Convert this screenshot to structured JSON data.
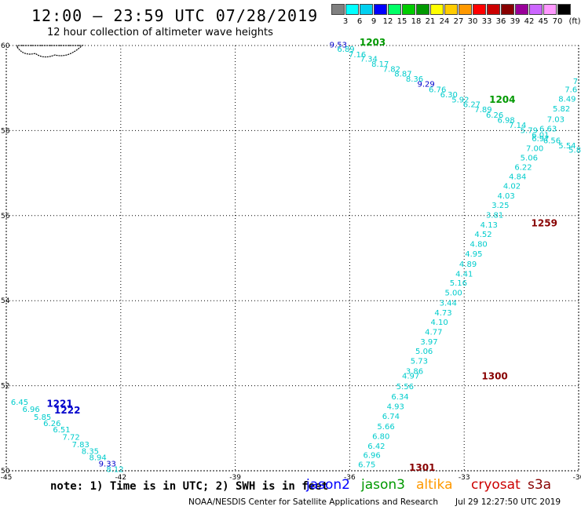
{
  "header": {
    "title": "12:00 – 23:59 UTC 07/28/2019",
    "subtitle": "12 hour collection of altimeter wave heights"
  },
  "colorbar": {
    "unit": "(ft)",
    "labels": [
      "3",
      "6",
      "9",
      "12",
      "15",
      "18",
      "21",
      "24",
      "27",
      "30",
      "33",
      "36",
      "39",
      "42",
      "45",
      "70"
    ],
    "colors": [
      "#808080",
      "#00ffff",
      "#00d0f0",
      "#0000ff",
      "#00ff66",
      "#00cc00",
      "#009900",
      "#ffff00",
      "#ffcc00",
      "#ff9900",
      "#ff0000",
      "#cc0000",
      "#880000",
      "#990099",
      "#cc66ff",
      "#ff99ff",
      "#000000"
    ]
  },
  "note": "note:  1) Time is in UTC;  2) SWH is in feet",
  "legend": [
    {
      "name": "jason2",
      "color": "#0000ff"
    },
    {
      "name": "jason3",
      "color": "#009900"
    },
    {
      "name": "altika",
      "color": "#ff9900"
    },
    {
      "name": "cryosat",
      "color": "#cc0000"
    },
    {
      "name": "s3a",
      "color": "#880000"
    }
  ],
  "footer": "NOAA/NESDIS Center for Satellite Applications and Research",
  "footer_date": "Jul 29 12:27:50 UTC 2019",
  "map": {
    "lon_range": [
      -45,
      -30
    ],
    "lat_range": [
      50,
      60
    ],
    "x_ticks": [
      "-45",
      "-42",
      "-39",
      "-36",
      "-33",
      "-30"
    ],
    "y_ticks": [
      "60",
      "58",
      "56",
      "54",
      "52",
      "50"
    ],
    "grid": true
  },
  "tracks": [
    {
      "time": "1203",
      "color": "#009900",
      "points": [
        {
          "lon": -36.3,
          "lat": 59.95,
          "swh": "9.53",
          "color": "#0000cc"
        },
        {
          "lon": -36.1,
          "lat": 59.85,
          "swh": "6.89"
        },
        {
          "lon": -35.8,
          "lat": 59.72,
          "swh": "7.16"
        },
        {
          "lon": -35.5,
          "lat": 59.62,
          "swh": "7.34"
        },
        {
          "lon": -35.2,
          "lat": 59.5,
          "swh": "8.17"
        },
        {
          "lon": -34.9,
          "lat": 59.38,
          "swh": "7.82"
        },
        {
          "lon": -34.6,
          "lat": 59.27,
          "swh": "8.87"
        },
        {
          "lon": -34.3,
          "lat": 59.15,
          "swh": "8.36"
        },
        {
          "lon": -34.0,
          "lat": 59.03,
          "swh": "9.29",
          "color": "#0000cc"
        },
        {
          "lon": -33.7,
          "lat": 58.9,
          "swh": "6.76"
        },
        {
          "lon": -33.4,
          "lat": 58.78,
          "swh": "6.30"
        },
        {
          "lon": -33.1,
          "lat": 58.66,
          "swh": "5.92"
        },
        {
          "lon": -32.8,
          "lat": 58.55,
          "swh": "6.27"
        },
        {
          "lon": -32.5,
          "lat": 58.43,
          "swh": "7.89"
        },
        {
          "lon": -32.2,
          "lat": 58.3,
          "swh": "6.26"
        },
        {
          "lon": -31.9,
          "lat": 58.18,
          "swh": "6.98"
        },
        {
          "lon": -31.6,
          "lat": 58.06,
          "swh": "7.14"
        },
        {
          "lon": -31.3,
          "lat": 57.94,
          "swh": "5.79"
        },
        {
          "lon": -31.0,
          "lat": 57.83,
          "swh": "6.01"
        },
        {
          "lon": -30.7,
          "lat": 57.7,
          "swh": "6.56"
        },
        {
          "lon": -30.3,
          "lat": 57.58,
          "swh": "5.54"
        },
        {
          "lon": -30.1,
          "lat": 57.48,
          "swh": "5.8"
        }
      ]
    },
    {
      "time": "1204",
      "color": "#009900",
      "points": [
        {
          "lon": -30.05,
          "lat": 59.1,
          "swh": "7."
        },
        {
          "lon": -30.2,
          "lat": 58.9,
          "swh": "7.6"
        },
        {
          "lon": -30.3,
          "lat": 58.68,
          "swh": "8.49"
        },
        {
          "lon": -30.45,
          "lat": 58.45,
          "swh": "5.82"
        },
        {
          "lon": -30.6,
          "lat": 58.2,
          "swh": "7.03"
        },
        {
          "lon": -30.8,
          "lat": 57.98,
          "swh": "6.63"
        },
        {
          "lon": -31.0,
          "lat": 57.75,
          "swh": "6.97"
        },
        {
          "lon": -31.15,
          "lat": 57.52,
          "swh": "7.00"
        },
        {
          "lon": -31.3,
          "lat": 57.3,
          "swh": "5.06"
        },
        {
          "lon": -31.45,
          "lat": 57.08,
          "swh": "6.22"
        },
        {
          "lon": -31.6,
          "lat": 56.85,
          "swh": "4.84"
        },
        {
          "lon": -31.75,
          "lat": 56.63,
          "swh": "4.02"
        },
        {
          "lon": -31.9,
          "lat": 56.4,
          "swh": "4.03"
        },
        {
          "lon": -32.05,
          "lat": 56.18,
          "swh": "3.25"
        },
        {
          "lon": -32.2,
          "lat": 55.95,
          "swh": "3.81"
        },
        {
          "lon": -32.35,
          "lat": 55.72,
          "swh": "4.13"
        },
        {
          "lon": -32.5,
          "lat": 55.5,
          "swh": "4.52"
        },
        {
          "lon": -32.62,
          "lat": 55.27,
          "swh": "4.80"
        },
        {
          "lon": -32.75,
          "lat": 55.04,
          "swh": "4.95"
        },
        {
          "lon": -32.9,
          "lat": 54.8,
          "swh": "4.89"
        },
        {
          "lon": -33.0,
          "lat": 54.57,
          "swh": "4.41"
        },
        {
          "lon": -33.15,
          "lat": 54.35,
          "swh": "5.16"
        },
        {
          "lon": -33.28,
          "lat": 54.12,
          "swh": "5.00"
        },
        {
          "lon": -33.42,
          "lat": 53.88,
          "swh": "3.44"
        },
        {
          "lon": -33.55,
          "lat": 53.65,
          "swh": "4.73"
        },
        {
          "lon": -33.65,
          "lat": 53.43,
          "swh": "4.10"
        },
        {
          "lon": -33.8,
          "lat": 53.2,
          "swh": "4.77"
        },
        {
          "lon": -33.92,
          "lat": 52.97,
          "swh": "3.97"
        },
        {
          "lon": -34.05,
          "lat": 52.75,
          "swh": "5.06"
        },
        {
          "lon": -34.18,
          "lat": 52.52,
          "swh": "5.73"
        },
        {
          "lon": -34.3,
          "lat": 52.28,
          "swh": "3.86"
        },
        {
          "lon": -34.4,
          "lat": 52.17,
          "swh": "4.97"
        },
        {
          "lon": -34.55,
          "lat": 51.92,
          "swh": "5.56"
        },
        {
          "lon": -34.68,
          "lat": 51.68,
          "swh": "6.34"
        },
        {
          "lon": -34.8,
          "lat": 51.45,
          "swh": "4.93"
        },
        {
          "lon": -34.92,
          "lat": 51.22,
          "swh": "6.74"
        },
        {
          "lon": -35.05,
          "lat": 50.98,
          "swh": "5.66"
        },
        {
          "lon": -35.18,
          "lat": 50.75,
          "swh": "6.80"
        },
        {
          "lon": -35.3,
          "lat": 50.52,
          "swh": "6.42"
        },
        {
          "lon": -35.42,
          "lat": 50.3,
          "swh": "6.96"
        },
        {
          "lon": -35.55,
          "lat": 50.08,
          "swh": "6.75"
        }
      ]
    },
    {
      "time": "1222",
      "color": "#0000ff",
      "points": [
        {
          "lon": -44.65,
          "lat": 51.55,
          "swh": "6.45"
        },
        {
          "lon": -44.35,
          "lat": 51.38,
          "swh": "6.96"
        },
        {
          "lon": -44.05,
          "lat": 51.2,
          "swh": "5.85"
        },
        {
          "lon": -43.8,
          "lat": 51.05,
          "swh": "6.26"
        },
        {
          "lon": -43.55,
          "lat": 50.9,
          "swh": "6.51"
        },
        {
          "lon": -43.3,
          "lat": 50.73,
          "swh": "7.72"
        },
        {
          "lon": -43.05,
          "lat": 50.55,
          "swh": "7.83"
        },
        {
          "lon": -42.8,
          "lat": 50.4,
          "swh": "8.35"
        },
        {
          "lon": -42.6,
          "lat": 50.25,
          "swh": "8.94"
        },
        {
          "lon": -42.35,
          "lat": 50.1,
          "swh": "9.33",
          "color": "#0000cc"
        },
        {
          "lon": -42.15,
          "lat": 49.97,
          "swh": "8.12"
        }
      ]
    }
  ],
  "time_labels": [
    {
      "text": "1203",
      "lon": -35.4,
      "lat": 60.0,
      "color": "#009900"
    },
    {
      "text": "1204",
      "lon": -32.0,
      "lat": 58.65,
      "color": "#009900"
    },
    {
      "text": "1259",
      "lon": -30.9,
      "lat": 55.75,
      "color": "#880000"
    },
    {
      "text": "1300",
      "lon": -32.2,
      "lat": 52.15,
      "color": "#880000"
    },
    {
      "text": "1301",
      "lon": -34.1,
      "lat": 50.0,
      "color": "#880000"
    },
    {
      "text": "1221",
      "lon": -43.6,
      "lat": 51.5,
      "color": "#0000cc"
    },
    {
      "text": "1222",
      "lon": -43.4,
      "lat": 51.35,
      "color": "#0000cc"
    }
  ]
}
